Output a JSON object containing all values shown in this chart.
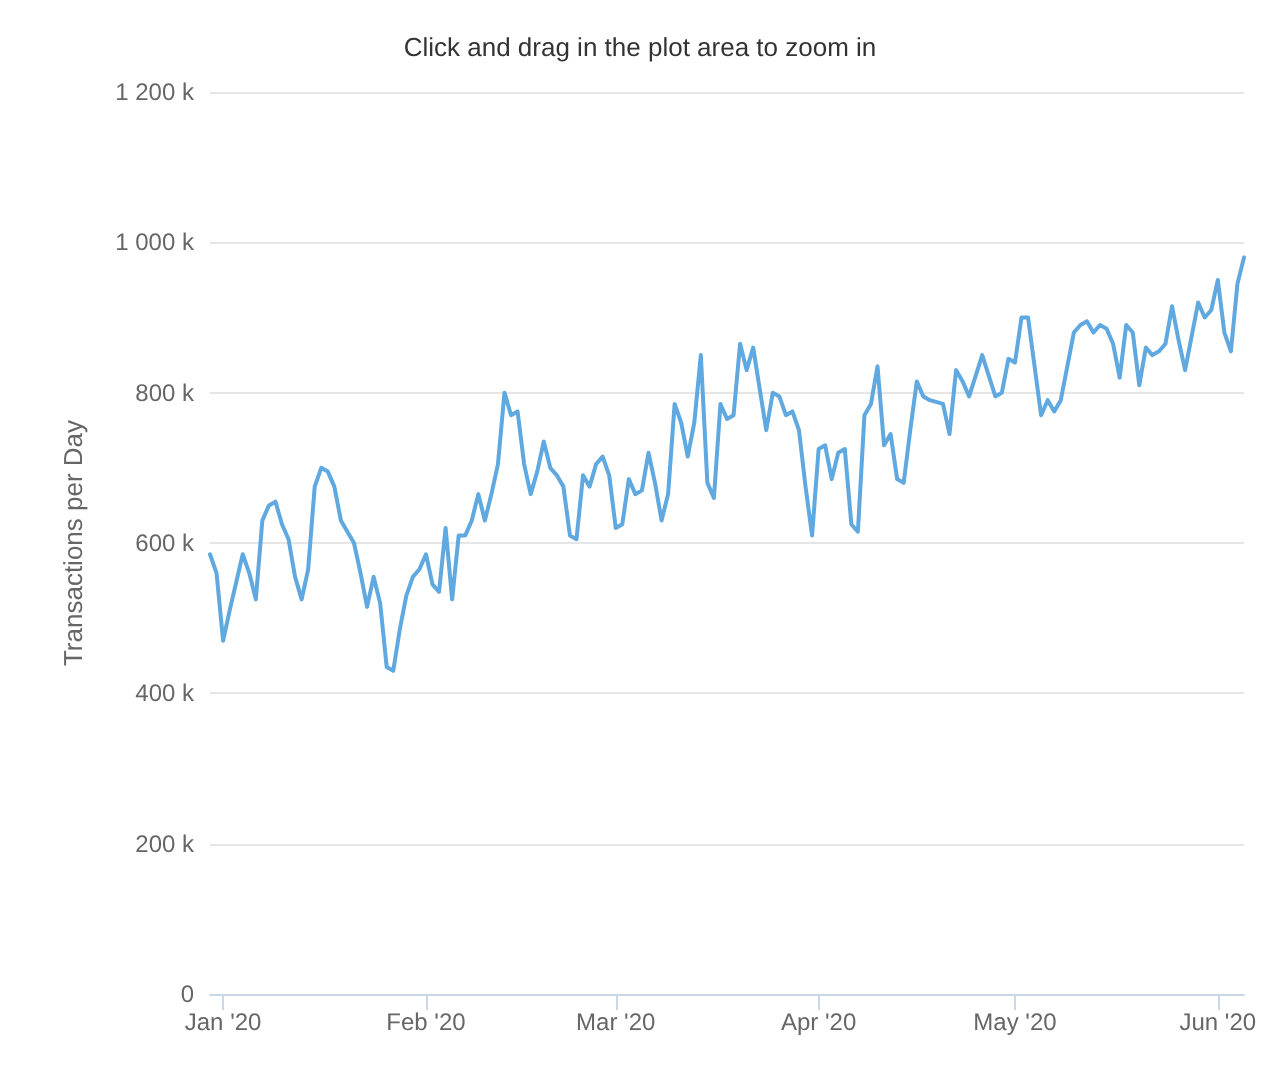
{
  "chart_data": {
    "type": "line",
    "subtitle": "Click and drag in the plot area to zoom in",
    "ylabel": "Transactions per Day",
    "x": [
      "2019-12-30",
      "2019-12-31",
      "2020-01-01",
      "2020-01-02",
      "2020-01-04",
      "2020-01-05",
      "2020-01-06",
      "2020-01-07",
      "2020-01-08",
      "2020-01-09",
      "2020-01-10",
      "2020-01-11",
      "2020-01-12",
      "2020-01-13",
      "2020-01-14",
      "2020-01-15",
      "2020-01-16",
      "2020-01-17",
      "2020-01-18",
      "2020-01-19",
      "2020-01-20",
      "2020-01-21",
      "2020-01-22",
      "2020-01-23",
      "2020-01-24",
      "2020-01-25",
      "2020-01-26",
      "2020-01-27",
      "2020-01-28",
      "2020-01-29",
      "2020-01-30",
      "2020-01-31",
      "2020-02-01",
      "2020-02-02",
      "2020-02-03",
      "2020-02-04",
      "2020-02-05",
      "2020-02-06",
      "2020-02-07",
      "2020-02-08",
      "2020-02-09",
      "2020-02-10",
      "2020-02-11",
      "2020-02-12",
      "2020-02-13",
      "2020-02-14",
      "2020-02-15",
      "2020-02-16",
      "2020-02-17",
      "2020-02-18",
      "2020-02-19",
      "2020-02-20",
      "2020-02-21",
      "2020-02-22",
      "2020-02-23",
      "2020-02-24",
      "2020-02-25",
      "2020-02-26",
      "2020-02-27",
      "2020-02-28",
      "2020-02-29",
      "2020-03-01",
      "2020-03-02",
      "2020-03-03",
      "2020-03-04",
      "2020-03-05",
      "2020-03-06",
      "2020-03-07",
      "2020-03-08",
      "2020-03-09",
      "2020-03-10",
      "2020-03-11",
      "2020-03-12",
      "2020-03-13",
      "2020-03-14",
      "2020-03-15",
      "2020-03-16",
      "2020-03-17",
      "2020-03-18",
      "2020-03-19",
      "2020-03-20",
      "2020-03-21",
      "2020-03-22",
      "2020-03-24",
      "2020-03-25",
      "2020-03-26",
      "2020-03-27",
      "2020-03-28",
      "2020-03-29",
      "2020-03-30",
      "2020-03-31",
      "2020-04-01",
      "2020-04-02",
      "2020-04-03",
      "2020-04-04",
      "2020-04-05",
      "2020-04-06",
      "2020-04-07",
      "2020-04-08",
      "2020-04-09",
      "2020-04-10",
      "2020-04-11",
      "2020-04-12",
      "2020-04-13",
      "2020-04-14",
      "2020-04-15",
      "2020-04-16",
      "2020-04-17",
      "2020-04-18",
      "2020-04-20",
      "2020-04-21",
      "2020-04-22",
      "2020-04-23",
      "2020-04-24",
      "2020-04-26",
      "2020-04-28",
      "2020-04-29",
      "2020-04-30",
      "2020-05-01",
      "2020-05-02",
      "2020-05-03",
      "2020-05-05",
      "2020-05-06",
      "2020-05-07",
      "2020-05-08",
      "2020-05-10",
      "2020-05-11",
      "2020-05-12",
      "2020-05-13",
      "2020-05-14",
      "2020-05-15",
      "2020-05-16",
      "2020-05-17",
      "2020-05-18",
      "2020-05-19",
      "2020-05-20",
      "2020-05-21",
      "2020-05-22",
      "2020-05-23",
      "2020-05-24",
      "2020-05-25",
      "2020-05-26",
      "2020-05-27",
      "2020-05-29",
      "2020-05-30",
      "2020-05-31",
      "2020-06-01",
      "2020-06-02",
      "2020-06-03",
      "2020-06-04",
      "2020-06-05"
    ],
    "series": [
      {
        "color": "#5fa8e0",
        "values": [
          585000,
          560000,
          470000,
          510000,
          585000,
          560000,
          525000,
          630000,
          650000,
          655000,
          625000,
          605000,
          555000,
          525000,
          565000,
          675000,
          700000,
          695000,
          675000,
          630000,
          615000,
          600000,
          560000,
          515000,
          555000,
          520000,
          435000,
          430000,
          485000,
          530000,
          555000,
          565000,
          585000,
          545000,
          535000,
          620000,
          525000,
          610000,
          610000,
          630000,
          665000,
          630000,
          665000,
          705000,
          800000,
          770000,
          775000,
          705000,
          665000,
          695000,
          735000,
          700000,
          690000,
          675000,
          610000,
          605000,
          690000,
          675000,
          705000,
          715000,
          690000,
          620000,
          625000,
          685000,
          665000,
          670000,
          720000,
          680000,
          630000,
          665000,
          785000,
          760000,
          715000,
          760000,
          850000,
          680000,
          660000,
          785000,
          765000,
          770000,
          865000,
          830000,
          860000,
          750000,
          800000,
          795000,
          770000,
          775000,
          750000,
          675000,
          610000,
          725000,
          730000,
          685000,
          720000,
          725000,
          625000,
          615000,
          770000,
          785000,
          835000,
          730000,
          745000,
          685000,
          680000,
          750000,
          815000,
          795000,
          790000,
          785000,
          745000,
          830000,
          815000,
          795000,
          850000,
          795000,
          800000,
          845000,
          840000,
          900000,
          900000,
          770000,
          790000,
          775000,
          790000,
          880000,
          890000,
          895000,
          880000,
          890000,
          885000,
          865000,
          820000,
          890000,
          880000,
          810000,
          860000,
          850000,
          855000,
          865000,
          915000,
          870000,
          830000,
          920000,
          900000,
          910000,
          950000,
          880000,
          855000,
          945000,
          980000
        ]
      }
    ],
    "xlim": [
      "2019-12-30",
      "2020-06-05"
    ],
    "xticks": [
      {
        "value": "2020-01-01",
        "label": "Jan '20"
      },
      {
        "value": "2020-02-01",
        "label": "Feb '20"
      },
      {
        "value": "2020-03-01",
        "label": "Mar '20"
      },
      {
        "value": "2020-04-01",
        "label": "Apr '20"
      },
      {
        "value": "2020-05-01",
        "label": "May '20"
      },
      {
        "value": "2020-06-01",
        "label": "Jun '20"
      }
    ],
    "ylim": [
      0,
      1200000
    ],
    "yticks": [
      0,
      {
        "value": 200000,
        "label": "200 k"
      },
      {
        "value": 400000,
        "label": "400 k"
      },
      {
        "value": 600000,
        "label": "600 k"
      },
      {
        "value": 800000,
        "label": "800 k"
      },
      {
        "value": 1000000,
        "label": "1 000 k"
      },
      {
        "value": 1200000,
        "label": "1 200 k"
      }
    ],
    "grid": "y",
    "marker": "none",
    "line_style": "solid"
  }
}
